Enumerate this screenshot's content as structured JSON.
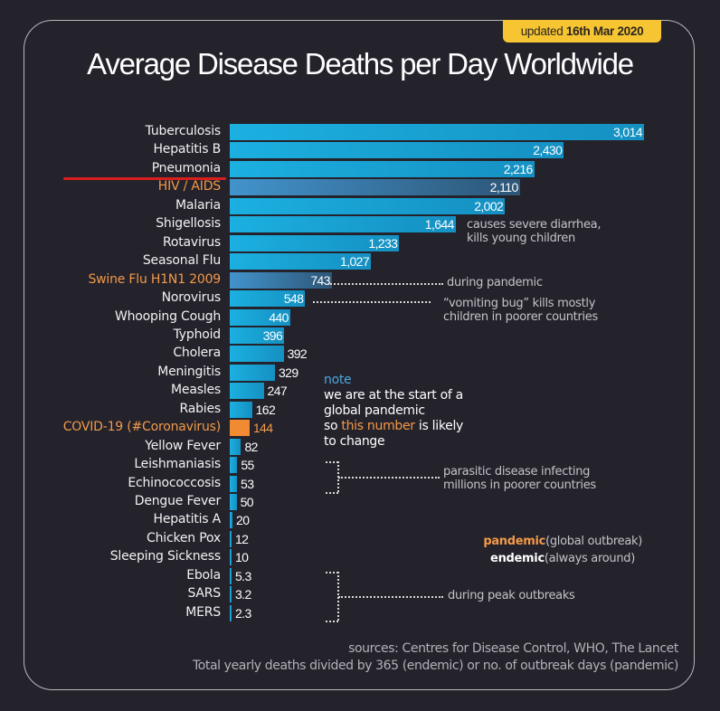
{
  "badge": {
    "prefix": "updated",
    "date": "16th Mar 2020"
  },
  "title": "Average Disease Deaths per Day Worldwide",
  "colors": {
    "bar": "#1aa6d6",
    "pandemic_bar": "#3a7db0",
    "covid_bar": "#f08a33",
    "highlight": "#f29a4a",
    "underline": "#d91e1e",
    "badge": "#f7c531",
    "note_heading": "#4aa8e0"
  },
  "chart_data": {
    "type": "bar",
    "orientation": "horizontal",
    "title": "Average Disease Deaths per Day Worldwide",
    "xlabel": "",
    "ylabel": "",
    "categories": [
      "Tuberculosis",
      "Hepatitis B",
      "Pneumonia",
      "HIV / AIDS",
      "Malaria",
      "Shigellosis",
      "Rotavirus",
      "Seasonal Flu",
      "Swine Flu H1N1 2009",
      "Norovirus",
      "Whooping Cough",
      "Typhoid",
      "Cholera",
      "Meningitis",
      "Measles",
      "Rabies",
      "COVID-19 (#Coronavirus)",
      "Yellow Fever",
      "Leishmaniasis",
      "Echinococcosis",
      "Dengue Fever",
      "Hepatitis A",
      "Chicken Pox",
      "Sleeping Sickness",
      "Ebola",
      "SARS",
      "MERS"
    ],
    "values": [
      3014,
      2430,
      2216,
      2110,
      2002,
      1644,
      1233,
      1027,
      743,
      548,
      440,
      396,
      392,
      329,
      247,
      162,
      144,
      82,
      55,
      53,
      50,
      20,
      12,
      10,
      5.3,
      3.2,
      2.3
    ],
    "value_labels": [
      "3,014",
      "2,430",
      "2,216",
      "2,110",
      "2,002",
      "1,644",
      "1,233",
      "1,027",
      "743",
      "548",
      "440",
      "396",
      "392",
      "329",
      "247",
      "162",
      "144",
      "82",
      "55",
      "53",
      "50",
      "20",
      "12",
      "10",
      "5.3",
      "3.2",
      "2.3"
    ],
    "kind": [
      "std",
      "std",
      "std",
      "pand",
      "std",
      "std",
      "std",
      "std",
      "pand",
      "std",
      "std",
      "std",
      "std",
      "std",
      "std",
      "std",
      "covid",
      "std",
      "std",
      "std",
      "std",
      "std",
      "std",
      "std",
      "std",
      "std",
      "std"
    ],
    "orange_label": [
      false,
      false,
      false,
      true,
      false,
      false,
      false,
      false,
      true,
      false,
      false,
      false,
      false,
      false,
      false,
      false,
      true,
      false,
      false,
      false,
      false,
      false,
      false,
      false,
      false,
      false,
      false
    ],
    "underlined": "Pneumonia",
    "xlim": [
      0,
      3014
    ],
    "grid": false
  },
  "annotations": {
    "shigellosis": [
      "causes severe diarrhea,",
      "kills young children"
    ],
    "swine_flu": "during pandemic",
    "norovirus": [
      "“vomiting bug” kills mostly",
      "children in poorer countries"
    ],
    "parasitic": [
      "parasitic disease infecting",
      "millions in poorer countries"
    ],
    "peak": "during peak outbreaks"
  },
  "note": {
    "heading": "note",
    "line1": "we are at the start of a",
    "line2": "global pandemic",
    "line3_a": "so ",
    "line3_b": "this number",
    "line3_c": " is likely",
    "line4": "to change"
  },
  "legend": {
    "pandemic": "pandemic",
    "pandemic_desc": "(global outbreak)",
    "endemic": "endemic",
    "endemic_desc": "(always around)"
  },
  "footer": {
    "sources": "sources: Centres for Disease Control, WHO, The Lancet",
    "method": "Total yearly deaths divided by 365 (endemic) or no. of outbreak days (pandemic)"
  }
}
